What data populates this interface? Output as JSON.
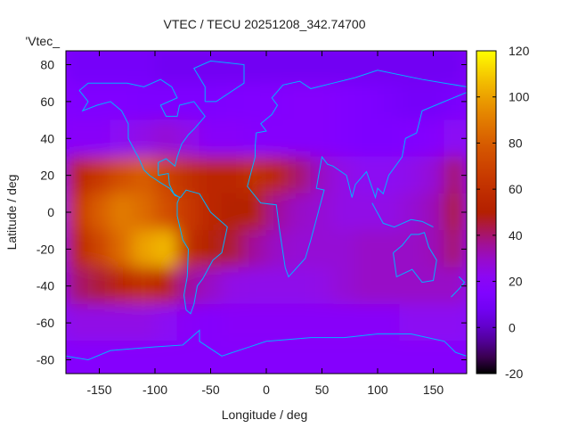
{
  "chart_data": {
    "type": "heatmap",
    "title": "VTEC / TECU 20251208_342.74700",
    "xlabel": "Longitude / deg",
    "ylabel": "Latitude / deg",
    "key_label": "'Vtec_",
    "xlim": [
      -180,
      180
    ],
    "ylim": [
      -87.5,
      87.5
    ],
    "xticks": [
      -150,
      -100,
      -50,
      0,
      50,
      100,
      150
    ],
    "yticks": [
      -80,
      -60,
      -40,
      -20,
      0,
      20,
      40,
      60,
      80
    ],
    "colorbar": {
      "range": [
        -20,
        120
      ],
      "ticks": [
        -20,
        0,
        20,
        40,
        60,
        80,
        100,
        120
      ]
    },
    "lon_centers": [
      -170,
      -150,
      -130,
      -110,
      -90,
      -70,
      -50,
      -30,
      -10,
      10,
      30,
      50,
      70,
      90,
      110,
      130,
      150,
      170
    ],
    "lat_centers": [
      80,
      60,
      40,
      20,
      0,
      -20,
      -40,
      -60,
      -80
    ],
    "values": [
      [
        10,
        10,
        10,
        10,
        8,
        8,
        8,
        8,
        8,
        8,
        8,
        8,
        8,
        8,
        8,
        8,
        8,
        8
      ],
      [
        15,
        15,
        15,
        14,
        14,
        14,
        14,
        15,
        16,
        17,
        18,
        18,
        16,
        14,
        12,
        10,
        10,
        12
      ],
      [
        20,
        20,
        22,
        25,
        28,
        25,
        20,
        20,
        18,
        18,
        18,
        18,
        16,
        14,
        14,
        16,
        18,
        22
      ],
      [
        55,
        65,
        75,
        80,
        70,
        60,
        55,
        55,
        60,
        55,
        40,
        30,
        25,
        22,
        22,
        24,
        28,
        40
      ],
      [
        65,
        80,
        90,
        85,
        75,
        65,
        55,
        50,
        50,
        35,
        30,
        28,
        25,
        25,
        25,
        28,
        32,
        45
      ],
      [
        55,
        70,
        85,
        100,
        105,
        60,
        50,
        45,
        35,
        30,
        28,
        28,
        28,
        30,
        30,
        30,
        32,
        40
      ],
      [
        40,
        45,
        55,
        60,
        55,
        35,
        30,
        25,
        24,
        24,
        24,
        25,
        28,
        30,
        30,
        30,
        30,
        30
      ],
      [
        25,
        25,
        25,
        25,
        22,
        20,
        18,
        20,
        20,
        20,
        20,
        20,
        20,
        20,
        20,
        22,
        22,
        22
      ],
      [
        18,
        18,
        18,
        18,
        18,
        18,
        18,
        18,
        18,
        18,
        18,
        18,
        18,
        18,
        18,
        18,
        18,
        18
      ]
    ],
    "grid": false
  }
}
